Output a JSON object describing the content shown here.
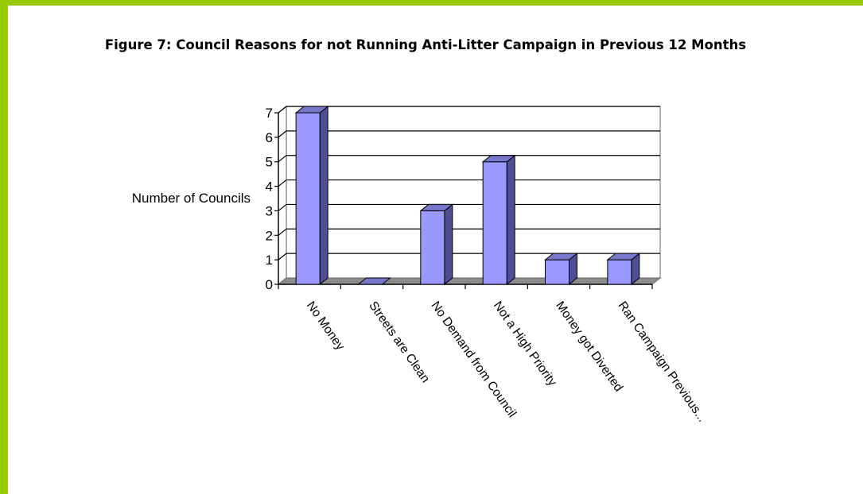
{
  "title": "Figure 7: Council Reasons for not Running Anti-Litter Campaign in Previous 12 Months",
  "colors": {
    "frame": "#99cc00",
    "bar_front": "#9999ff",
    "bar_side": "#4f4f8f",
    "bar_top": "#7777cc"
  },
  "chart_data": {
    "type": "bar",
    "title": "Figure 7: Council Reasons for not Running Anti-Litter Campaign in Previous 12 Months",
    "xlabel": "",
    "ylabel": "Number of Councils",
    "ylim": [
      0,
      7
    ],
    "yticks": [
      "0",
      "1",
      "2",
      "3",
      "4",
      "5",
      "6",
      "7"
    ],
    "grid": true,
    "style": "3d",
    "categories": [
      "No Money",
      "Streets are Clean",
      "No Demand from Council",
      "Not a High Priority",
      "Money got Diverted",
      "Ran Campaign Previous..."
    ],
    "values": [
      7,
      0,
      3,
      5,
      1,
      1
    ]
  }
}
